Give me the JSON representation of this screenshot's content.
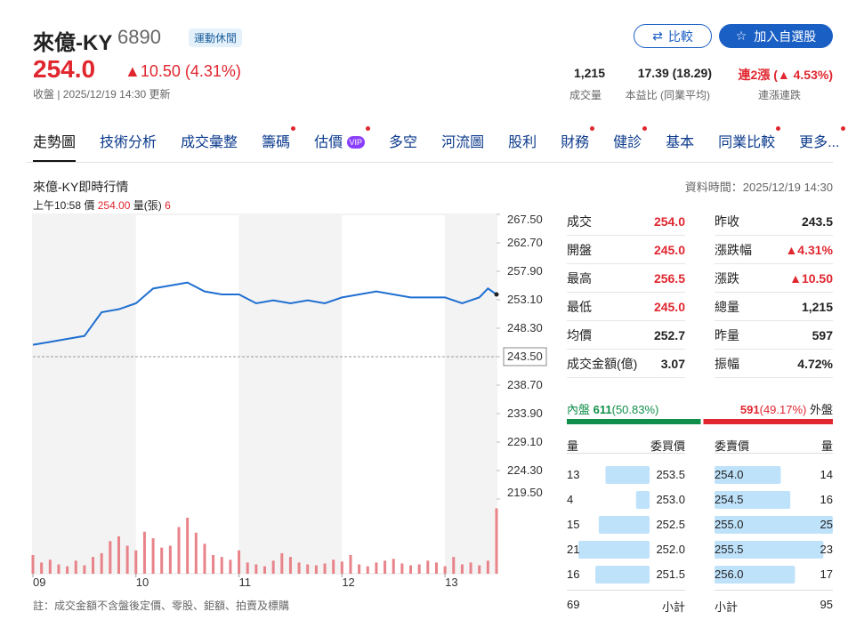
{
  "header": {
    "name": "來億-KY",
    "code": "6890",
    "tag": "運動休閒",
    "compare_button": "比較",
    "watchlist_button": "加入自選股",
    "price": "254.0",
    "change": "▲10.50 (4.31%)",
    "status": "收盤 | 2025/12/19 14:30 更新",
    "stats": [
      {
        "value": "1,215",
        "label": "成交量"
      },
      {
        "value": "17.39 (18.29)",
        "label": "本益比 (同業平均)"
      },
      {
        "value": "連2漲 (▲ 4.53%)",
        "label": "連漲連跌"
      }
    ]
  },
  "tabs": [
    "走勢圖",
    "技術分析",
    "成交彙整",
    "籌碼",
    "估價",
    "多空",
    "河流圖",
    "股利",
    "財務",
    "健診",
    "基本",
    "同業比較",
    "更多..."
  ],
  "vip_badge": "VIP",
  "chart_data": {
    "type": "line",
    "title": "來億-KY即時行情",
    "data_time": "資料時間：2025/12/19 14:30",
    "cursor": {
      "time": "上午10:58",
      "price_label": "價",
      "price": "254.00",
      "volume_label": "量(張)",
      "volume": "6"
    },
    "x": [
      "09:00",
      "09:10",
      "09:20",
      "09:30",
      "09:40",
      "09:50",
      "10:00",
      "10:10",
      "10:20",
      "10:30",
      "10:40",
      "10:50",
      "11:00",
      "11:10",
      "11:20",
      "11:30",
      "11:40",
      "11:50",
      "12:00",
      "12:10",
      "12:20",
      "12:30",
      "12:40",
      "12:50",
      "13:00",
      "13:10",
      "13:20",
      "13:25",
      "13:30"
    ],
    "values": [
      245.5,
      246.0,
      246.5,
      247.0,
      251.0,
      251.5,
      252.5,
      255.0,
      255.5,
      256.0,
      254.5,
      254.0,
      254.0,
      252.5,
      253.0,
      252.5,
      253.0,
      252.5,
      253.5,
      254.0,
      254.5,
      254.0,
      253.5,
      253.5,
      253.5,
      252.5,
      253.5,
      255.0,
      254.0
    ],
    "color": "#1f6fd0",
    "xlim": [
      "09:00",
      "13:30"
    ],
    "xticks": [
      {
        "value": "09:00",
        "label": "09"
      },
      {
        "value": "10:00",
        "label": "10"
      },
      {
        "value": "11:00",
        "label": "11"
      },
      {
        "value": "12:00",
        "label": "12"
      },
      {
        "value": "13:00",
        "label": "13"
      }
    ],
    "ylim": [
      219.5,
      267.5
    ],
    "yticks": [
      {
        "value": 267.5,
        "label": "267.50"
      },
      {
        "value": 262.7,
        "label": "262.70"
      },
      {
        "value": 257.9,
        "label": "257.90"
      },
      {
        "value": 253.1,
        "label": "253.10"
      },
      {
        "value": 248.3,
        "label": "248.30"
      },
      {
        "value": 243.5,
        "label": "243.50"
      },
      {
        "value": 238.7,
        "label": "238.70"
      },
      {
        "value": 233.9,
        "label": "233.90"
      },
      {
        "value": 229.1,
        "label": "229.10"
      },
      {
        "value": 224.3,
        "label": "224.30"
      },
      {
        "value": 219.5,
        "label": "219.50"
      }
    ],
    "reference_line": 243.5,
    "volume": {
      "color": "#e8838a",
      "lim": [
        0,
        80
      ],
      "x": [
        "09:00",
        "09:05",
        "09:10",
        "09:15",
        "09:20",
        "09:25",
        "09:30",
        "09:35",
        "09:40",
        "09:45",
        "09:50",
        "09:55",
        "10:00",
        "10:05",
        "10:10",
        "10:15",
        "10:20",
        "10:25",
        "10:30",
        "10:35",
        "10:40",
        "10:45",
        "10:50",
        "10:55",
        "11:00",
        "11:05",
        "11:10",
        "11:15",
        "11:20",
        "11:25",
        "11:30",
        "11:35",
        "11:40",
        "11:45",
        "11:50",
        "11:55",
        "12:00",
        "12:05",
        "12:10",
        "12:15",
        "12:20",
        "12:25",
        "12:30",
        "12:35",
        "12:40",
        "12:45",
        "12:50",
        "12:55",
        "13:00",
        "13:05",
        "13:10",
        "13:15",
        "13:20",
        "13:25",
        "13:30"
      ],
      "values": [
        20,
        12,
        15,
        10,
        8,
        14,
        9,
        18,
        22,
        35,
        40,
        30,
        25,
        45,
        38,
        28,
        30,
        50,
        60,
        44,
        32,
        20,
        18,
        15,
        25,
        12,
        10,
        8,
        14,
        22,
        18,
        12,
        10,
        9,
        11,
        15,
        13,
        20,
        10,
        8,
        12,
        14,
        16,
        11,
        9,
        10,
        14,
        12,
        8,
        18,
        10,
        12,
        9,
        14,
        70
      ]
    },
    "note": "註：成交金額不含盤後定價、零股、鉅額、拍賣及標購"
  },
  "quote": {
    "left": [
      [
        "成交",
        "254.0"
      ],
      [
        "開盤",
        "245.0"
      ],
      [
        "最高",
        "256.5"
      ],
      [
        "最低",
        "245.0"
      ],
      [
        "均價",
        "252.7"
      ],
      [
        "成交金額(億)",
        "3.07"
      ]
    ],
    "right": [
      [
        "昨收",
        "243.5"
      ],
      [
        "漲跌幅",
        "▲4.31%"
      ],
      [
        "漲跌",
        "▲10.50"
      ],
      [
        "總量",
        "1,215"
      ],
      [
        "昨量",
        "597"
      ],
      [
        "振幅",
        "4.72%"
      ]
    ]
  },
  "order_flow": {
    "inner_label": "內盤",
    "inner": 611,
    "inner_pct": "(50.83%)",
    "outer": 591,
    "outer_pct": "(49.17%)",
    "outer_label": "外盤"
  },
  "order_book": {
    "headers": [
      "量",
      "委買價",
      "委賣價",
      "量"
    ],
    "bids": [
      {
        "volume": 13,
        "price": "253.5"
      },
      {
        "volume": 4,
        "price": "253.0"
      },
      {
        "volume": 15,
        "price": "252.5"
      },
      {
        "volume": 21,
        "price": "252.0"
      },
      {
        "volume": 16,
        "price": "251.5"
      }
    ],
    "asks": [
      {
        "price": "254.0",
        "volume": 14
      },
      {
        "price": "254.5",
        "volume": 16
      },
      {
        "price": "255.0",
        "volume": 25
      },
      {
        "price": "255.5",
        "volume": 23
      },
      {
        "price": "256.0",
        "volume": 17
      }
    ],
    "bid_total": 69,
    "ask_total": 95,
    "subtotal_label": "小計"
  }
}
